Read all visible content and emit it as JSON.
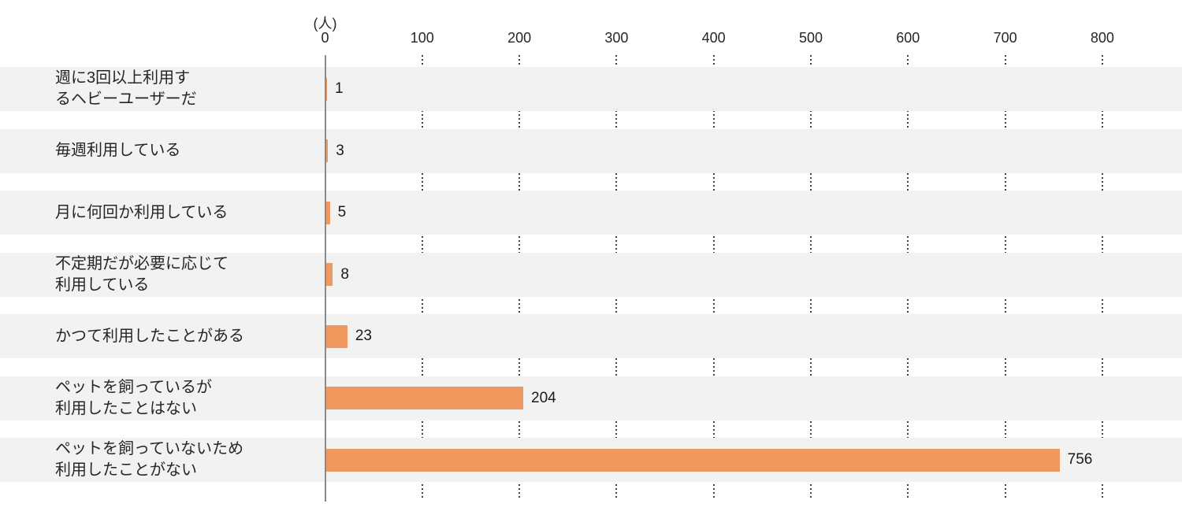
{
  "chart_data": {
    "type": "bar",
    "orientation": "horizontal",
    "title": "",
    "unit_label": "(人)",
    "categories": [
      [
        "週に3回以上利用す",
        "るヘビーユーザーだ"
      ],
      [
        "毎週利用している"
      ],
      [
        "月に何回か利用している"
      ],
      [
        "不定期だが必要に応じて",
        "利用している"
      ],
      [
        "かつて利用したことがある"
      ],
      [
        "ペットを飼っているが",
        "利用したことはない"
      ],
      [
        "ペットを飼っていないため",
        "利用したことがない"
      ]
    ],
    "values": [
      1,
      3,
      5,
      8,
      23,
      204,
      756
    ],
    "value_labels": [
      "1",
      "3",
      "5",
      "8",
      "23",
      "204",
      "756"
    ],
    "x_ticks": [
      0,
      100,
      200,
      300,
      400,
      500,
      600,
      700,
      800
    ],
    "xlim": [
      0,
      880
    ],
    "grid": "dotted-vertical-in-row-gaps",
    "legend": "none",
    "colors": {
      "bar": "#F0995F",
      "row_band": "#F2F2F2",
      "axis_line": "#8A8A8A",
      "gridline": "#3F3F3F",
      "text": "#262626"
    }
  }
}
